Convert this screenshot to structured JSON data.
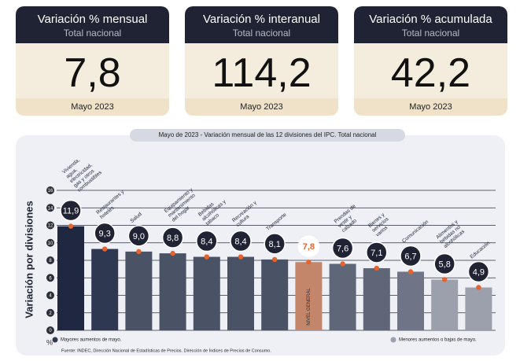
{
  "cards": [
    {
      "title": "Variación % mensual",
      "subtitle": "Total nacional",
      "value": "7,8",
      "date": "Mayo 2023"
    },
    {
      "title": "Variación % interanual",
      "subtitle": "Total nacional",
      "value": "114,2",
      "date": "Mayo 2023"
    },
    {
      "title": "Variación % acumulada",
      "subtitle": "Total nacional",
      "value": "42,2",
      "date": "Mayo 2023"
    }
  ],
  "chart_data": {
    "type": "bar",
    "title": "Mayo de 2023 - Variación mensual de las 12 divisiones del IPC. Total nacional",
    "y_label": "Variación por divisiones",
    "y_unit": "%",
    "categories": [
      "Vivienda, agua, electricidad, gas y otros combustibles",
      "Restaurantes y hoteles",
      "Salud",
      "Equipamiento y mantenimiento del hogar",
      "Bebidas alcohólicas y tabaco",
      "Recreación y cultura",
      "Transporte",
      "NIVEL GENERAL",
      "Prendas de vestir y calzado",
      "Bienes y servicios varios",
      "Comunicación",
      "Alimentos y bebidas no alcohólicas",
      "Educación"
    ],
    "values": [
      11.9,
      9.3,
      9.0,
      8.8,
      8.4,
      8.4,
      8.1,
      7.8,
      7.6,
      7.1,
      6.7,
      5.8,
      4.9
    ],
    "value_labels": [
      "11,9",
      "9,3",
      "9,0",
      "8,8",
      "8,4",
      "8,4",
      "8,1",
      "7,8",
      "7,6",
      "7,1",
      "6,7",
      "5,8",
      "4,9"
    ],
    "colors": [
      "#1f2840",
      "#2e3850",
      "#4a5266",
      "#4a5266",
      "#4a5266",
      "#4a5266",
      "#4a5266",
      "#c4866a",
      "#5f6678",
      "#5f6678",
      "#6f7586",
      "#9ba0ac",
      "#9ba0ac"
    ],
    "ylim": [
      0,
      16
    ],
    "yticks": [
      0,
      2,
      4,
      6,
      8,
      10,
      12,
      14,
      16
    ],
    "grid": true,
    "legend": [
      {
        "label": "Mayores aumentos de mayo.",
        "color": "#2e3850"
      },
      {
        "label": "Menores aumentos o bajas de mayo.",
        "color": "#9ba0ac"
      }
    ],
    "source": "Fuente: INDEC, Dirección Nacional de Estadísticas de Precios. Dirección de Índices de Precios de Consumo."
  }
}
